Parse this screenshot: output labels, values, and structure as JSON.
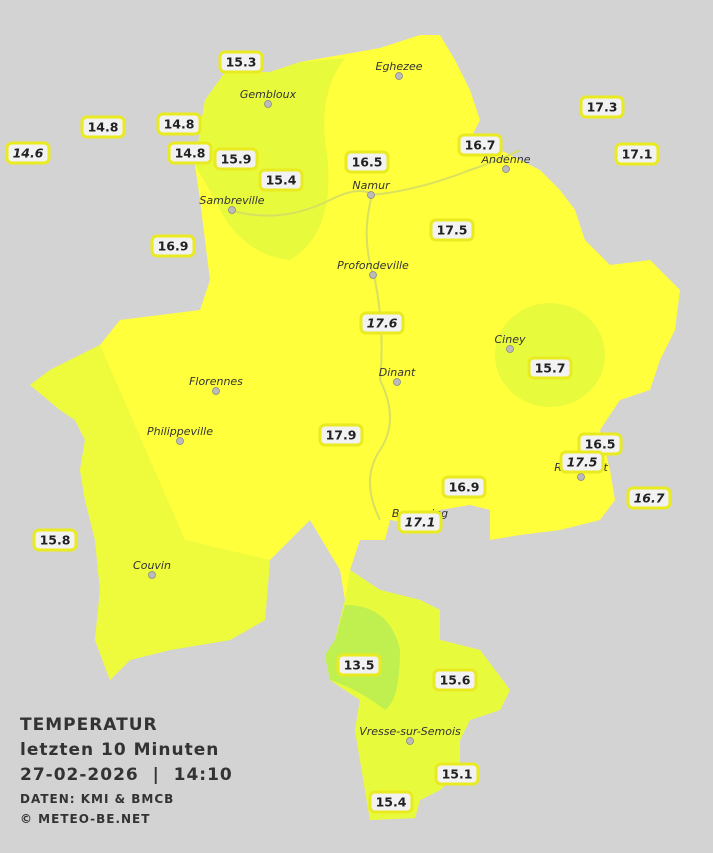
{
  "title": "TEMPERATUR",
  "subtitle": "letzten 10 Minuten",
  "datetime": "27-02-2026  |  14:10",
  "source": "DATEN: KMI & BMCB",
  "copyright": "© METEO-BE.NET",
  "cities": [
    "Eghezee",
    "Gembloux",
    "Andenne",
    "Namur",
    "Sambreville",
    "Profondeville",
    "Ciney",
    "Dinant",
    "Florennes",
    "Philippeville",
    "Rochefort",
    "Beauraing",
    "Couvin",
    "Vresse-sur-Semois"
  ],
  "stations": [
    {
      "value": 15.3,
      "italic": false
    },
    {
      "value": 14.8,
      "italic": false
    },
    {
      "value": 14.8,
      "italic": false
    },
    {
      "value": 14.6,
      "italic": true
    },
    {
      "value": 14.8,
      "italic": false
    },
    {
      "value": 15.9,
      "italic": false
    },
    {
      "value": 15.4,
      "italic": false
    },
    {
      "value": 16.5,
      "italic": false
    },
    {
      "value": 16.7,
      "italic": false
    },
    {
      "value": 17.3,
      "italic": false
    },
    {
      "value": 17.1,
      "italic": false
    },
    {
      "value": 16.9,
      "italic": false
    },
    {
      "value": 17.5,
      "italic": false
    },
    {
      "value": 17.6,
      "italic": true
    },
    {
      "value": 15.7,
      "italic": false
    },
    {
      "value": 17.9,
      "italic": false
    },
    {
      "value": 16.5,
      "italic": false
    },
    {
      "value": 17.5,
      "italic": true
    },
    {
      "value": 16.7,
      "italic": true
    },
    {
      "value": 16.9,
      "italic": false
    },
    {
      "value": 17.1,
      "italic": true
    },
    {
      "value": 15.8,
      "italic": false
    },
    {
      "value": 13.5,
      "italic": false
    },
    {
      "value": 15.6,
      "italic": false
    },
    {
      "value": 15.1,
      "italic": false
    },
    {
      "value": 15.4,
      "italic": false
    }
  ]
}
